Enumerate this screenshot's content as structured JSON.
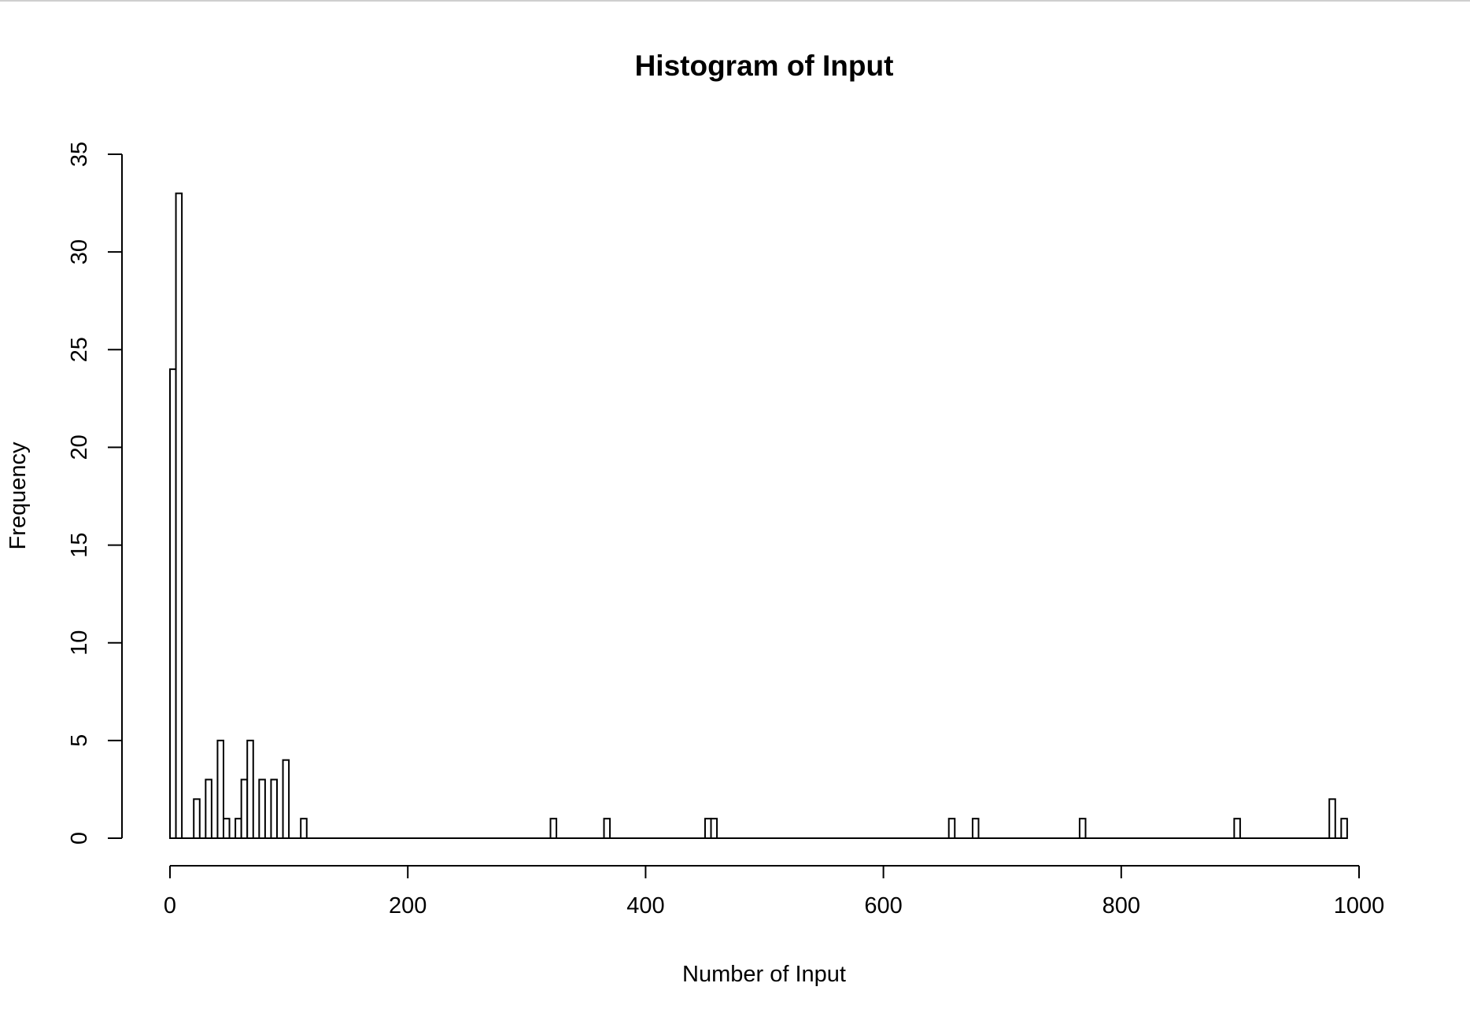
{
  "chart_data": {
    "type": "bar",
    "title": "Histogram of Input",
    "xlabel": "Number of Input",
    "ylabel": "Frequency",
    "xlim": [
      0,
      1000
    ],
    "ylim": [
      0,
      35
    ],
    "x_ticks": [
      0,
      200,
      400,
      600,
      800,
      1000
    ],
    "y_ticks": [
      0,
      5,
      10,
      15,
      20,
      25,
      30,
      35
    ],
    "bin_width": 5,
    "grid": false,
    "legend": "none",
    "bins": [
      {
        "start": 0,
        "count": 24
      },
      {
        "start": 5,
        "count": 33
      },
      {
        "start": 20,
        "count": 2
      },
      {
        "start": 30,
        "count": 3
      },
      {
        "start": 40,
        "count": 5
      },
      {
        "start": 45,
        "count": 1
      },
      {
        "start": 55,
        "count": 1
      },
      {
        "start": 60,
        "count": 3
      },
      {
        "start": 65,
        "count": 5
      },
      {
        "start": 75,
        "count": 3
      },
      {
        "start": 85,
        "count": 3
      },
      {
        "start": 95,
        "count": 4
      },
      {
        "start": 110,
        "count": 1
      },
      {
        "start": 320,
        "count": 1
      },
      {
        "start": 365,
        "count": 1
      },
      {
        "start": 450,
        "count": 1
      },
      {
        "start": 455,
        "count": 1
      },
      {
        "start": 655,
        "count": 1
      },
      {
        "start": 675,
        "count": 1
      },
      {
        "start": 765,
        "count": 1
      },
      {
        "start": 895,
        "count": 1
      },
      {
        "start": 975,
        "count": 2
      },
      {
        "start": 985,
        "count": 1
      }
    ]
  }
}
